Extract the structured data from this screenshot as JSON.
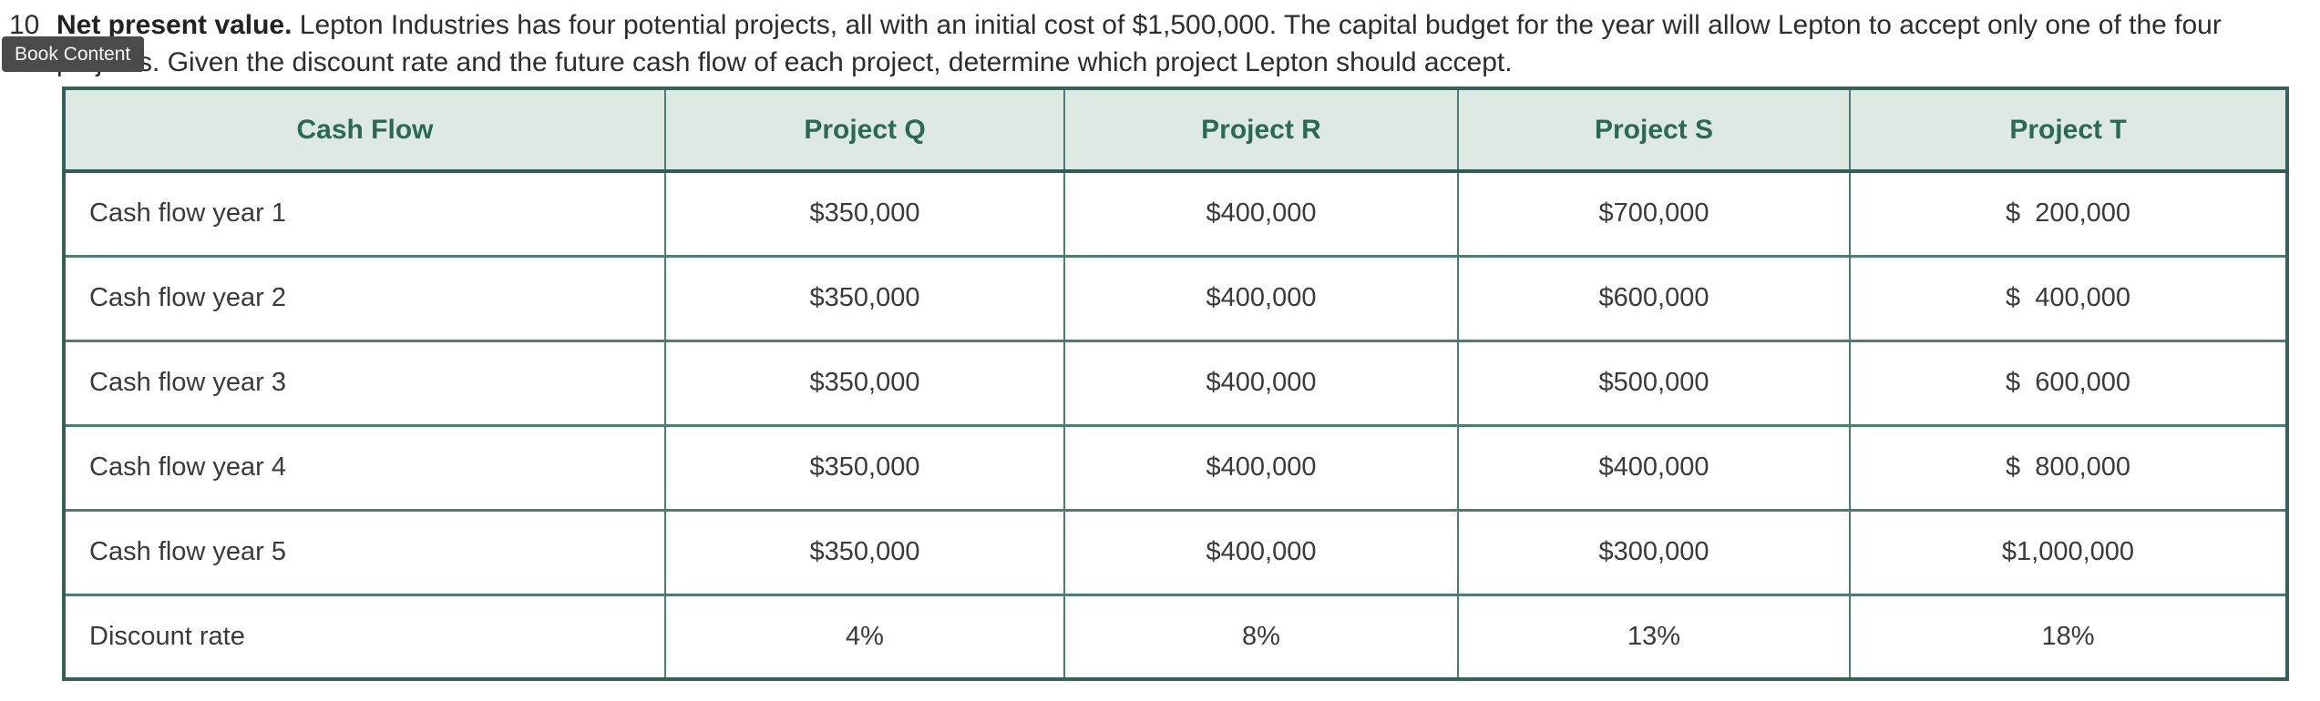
{
  "tooltip": {
    "label": "Book Content",
    "bg": "#4b4b4b"
  },
  "problem": {
    "number": "10",
    "bold_lead": "Net present value.",
    "text": " Lepton Industries has four potential projects, all with an initial cost of $1,500,000. The capital budget for the year will allow Lepton to accept only one of the four projects. Given the discount rate and the future cash flow of each project, determine which project Lepton should accept."
  },
  "table": {
    "headers": [
      "Cash Flow",
      "Project Q",
      "Project R",
      "Project S",
      "Project T"
    ],
    "rows": [
      {
        "label": "Cash flow year 1",
        "q": "$350,000",
        "r": "$400,000",
        "s": "$700,000",
        "t": "$  200,000"
      },
      {
        "label": "Cash flow year 2",
        "q": "$350,000",
        "r": "$400,000",
        "s": "$600,000",
        "t": "$  400,000"
      },
      {
        "label": "Cash flow year 3",
        "q": "$350,000",
        "r": "$400,000",
        "s": "$500,000",
        "t": "$  600,000"
      },
      {
        "label": "Cash flow year 4",
        "q": "$350,000",
        "r": "$400,000",
        "s": "$400,000",
        "t": "$  800,000"
      },
      {
        "label": "Cash flow year 5",
        "q": "$350,000",
        "r": "$400,000",
        "s": "$300,000",
        "t": "$1,000,000"
      },
      {
        "label": "Discount rate",
        "q": "4%",
        "r": "8%",
        "s": "13%",
        "t": "18%"
      }
    ]
  },
  "colors": {
    "header_bg": "#dfe9e4",
    "header_text": "#2a6a54",
    "outer_border": "#35625b",
    "inner_border": "#4c7d74",
    "body_text": "#3a3a3a",
    "tooltip_bg": "#4b4b4b"
  }
}
